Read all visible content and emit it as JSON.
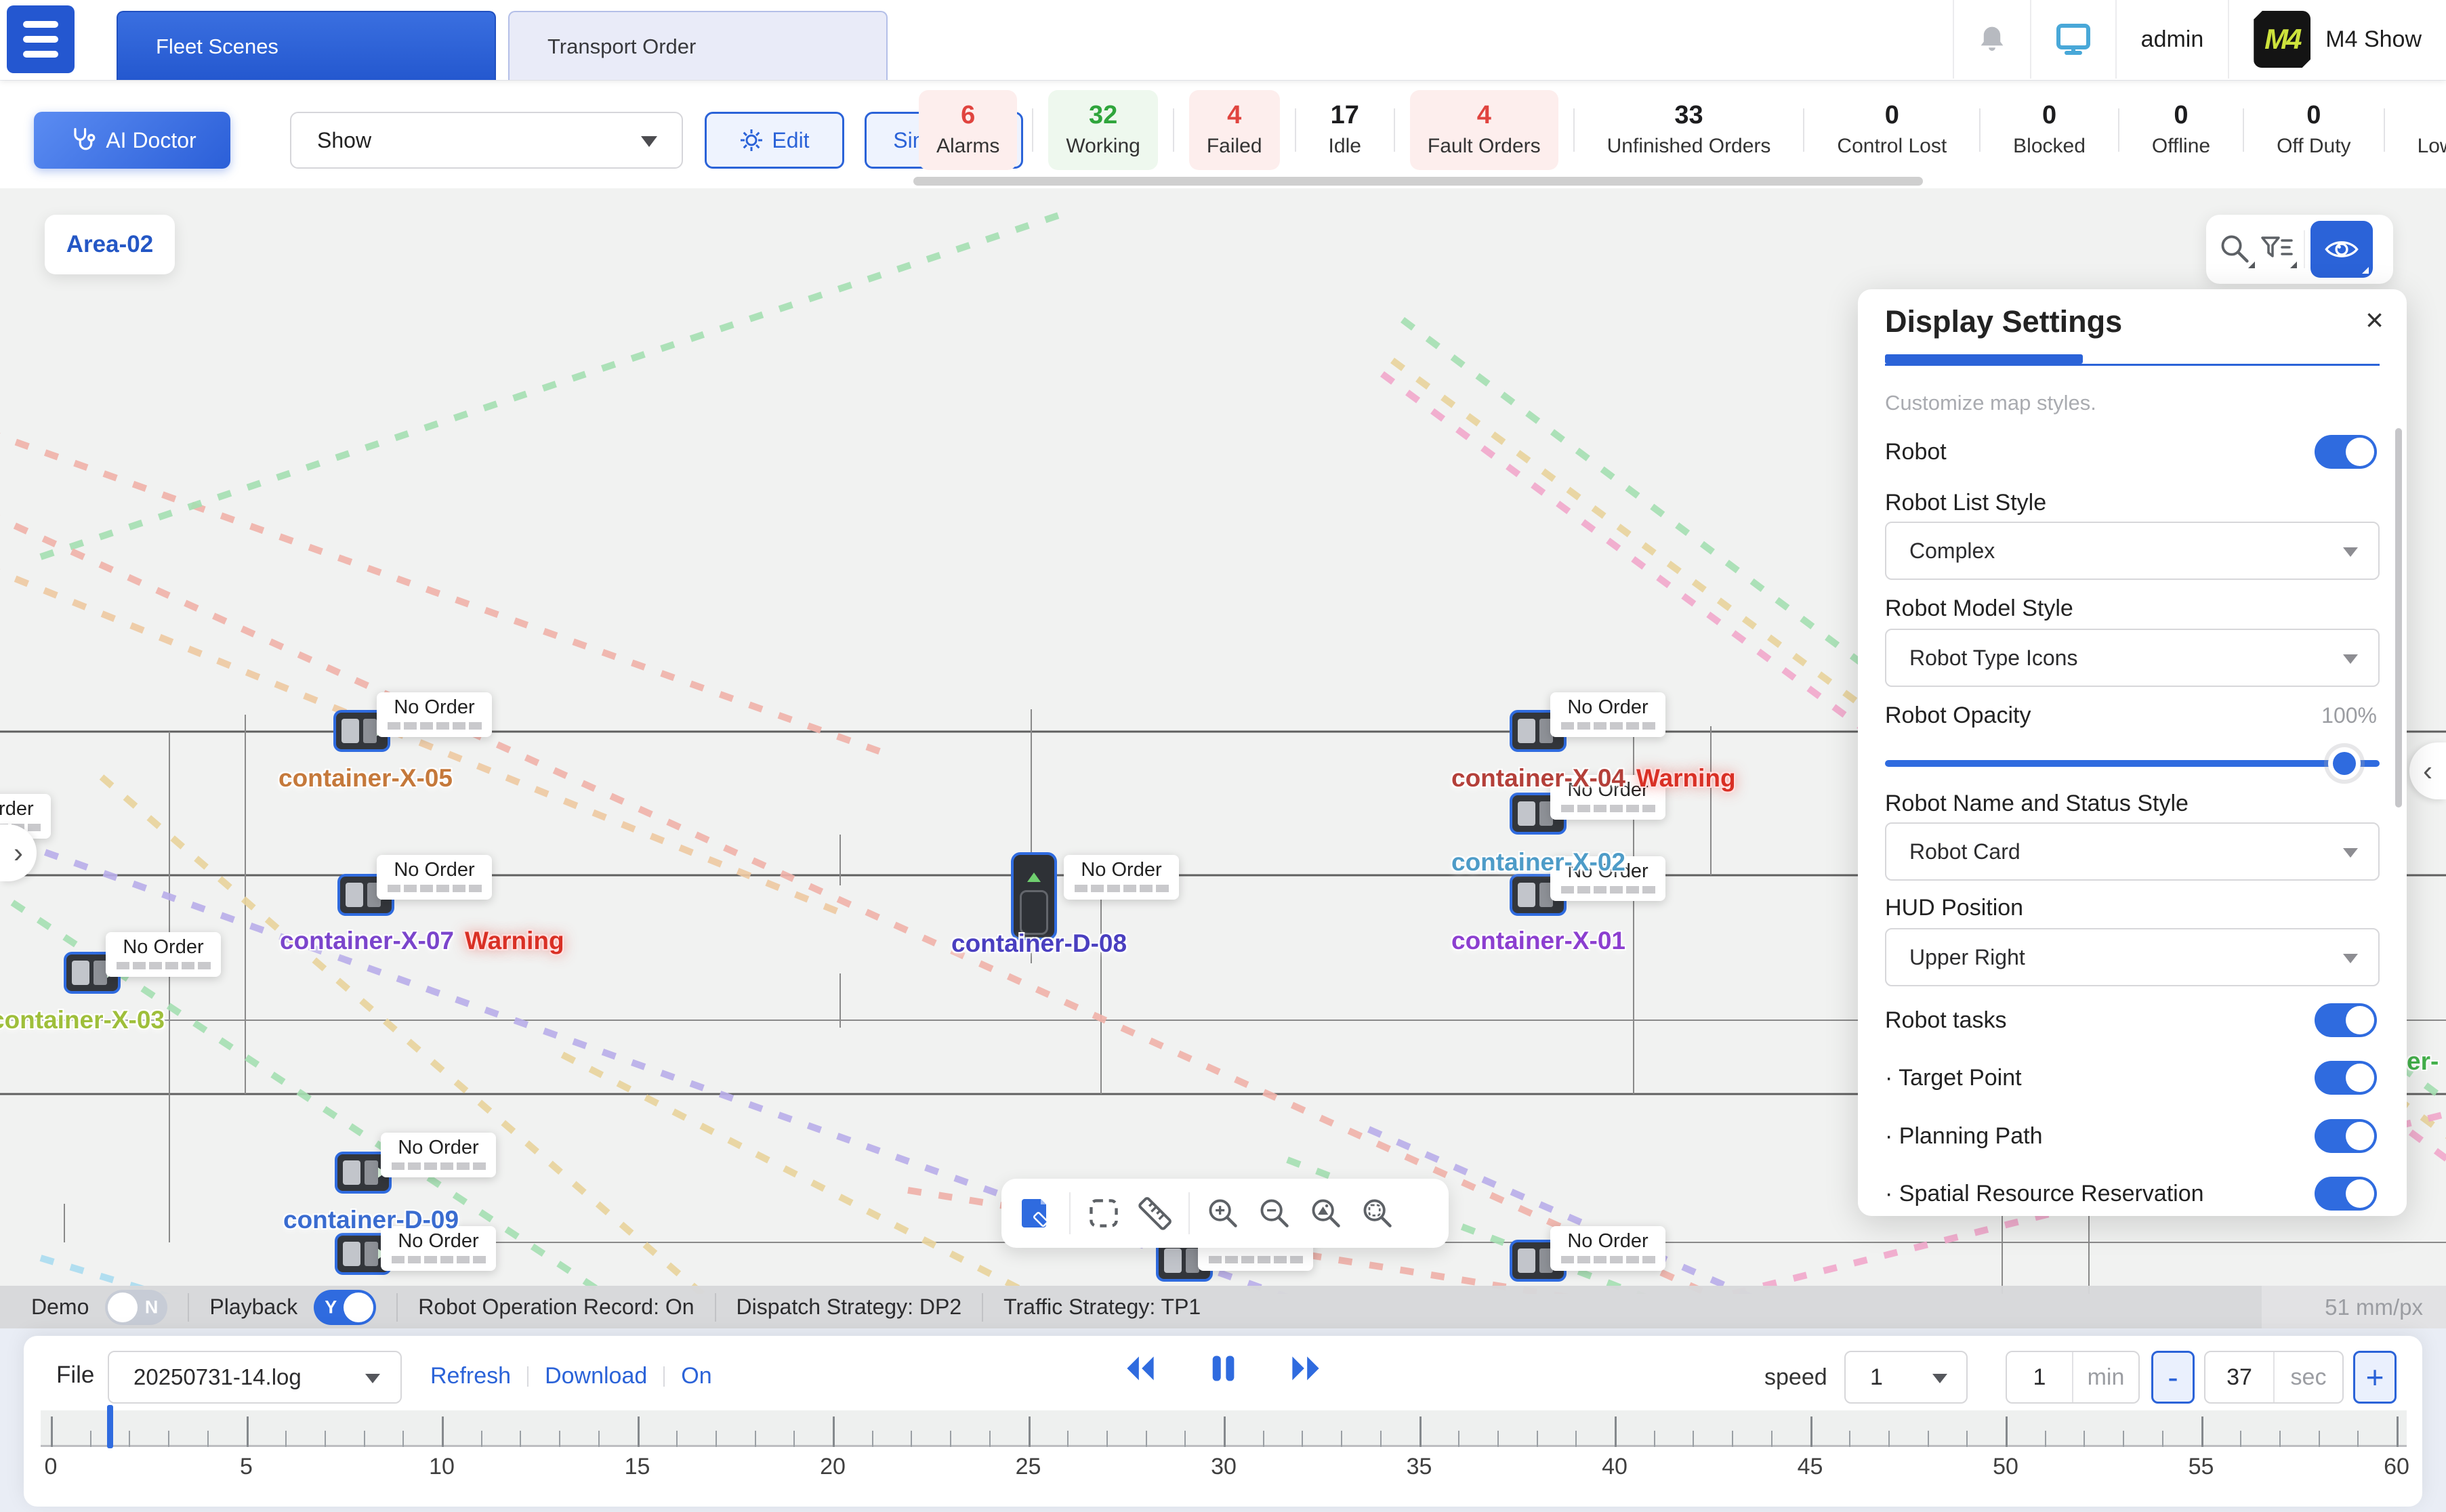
{
  "header": {
    "tabs": [
      "Fleet Scenes",
      "Transport Order"
    ],
    "user": "admin",
    "brand": "M4 Show",
    "logo_text": "M4"
  },
  "toolbar": {
    "ai_doctor": "AI Doctor",
    "mode_select": "Show",
    "edit": "Edit",
    "simulation": "Simulation",
    "stats": [
      {
        "value": "6",
        "label": "Alarms",
        "style": "red"
      },
      {
        "value": "32",
        "label": "Working",
        "style": "green"
      },
      {
        "value": "4",
        "label": "Failed",
        "style": "red"
      },
      {
        "value": "17",
        "label": "Idle",
        "style": "plain"
      },
      {
        "value": "4",
        "label": "Fault Orders",
        "style": "red"
      },
      {
        "value": "33",
        "label": "Unfinished Orders",
        "style": "plain"
      },
      {
        "value": "0",
        "label": "Control Lost",
        "style": "plain"
      },
      {
        "value": "0",
        "label": "Blocked",
        "style": "plain"
      },
      {
        "value": "0",
        "label": "Offline",
        "style": "plain"
      },
      {
        "value": "0",
        "label": "Off Duty",
        "style": "plain"
      },
      {
        "value": "0",
        "label": "Low Power",
        "style": "plain"
      }
    ]
  },
  "map": {
    "area_badge": "Area-02",
    "no_order_label": "No Order",
    "warning_label": "Warning",
    "accent_color": "#2b63d8",
    "units": [
      {
        "name": "container-X-05",
        "color": "#c5793b",
        "robot": [
          492,
          771
        ],
        "dir": "h",
        "card": [
          556,
          745
        ],
        "label": [
          411,
          851
        ]
      },
      {
        "name": "container-X-07",
        "color": "#7b45cc",
        "warning": true,
        "robot": [
          498,
          1013
        ],
        "dir": "h",
        "card": [
          556,
          985
        ],
        "label": [
          413,
          1091
        ]
      },
      {
        "name": "container-X-03",
        "color": "#9fbf3b",
        "robot": [
          94,
          1128
        ],
        "dir": "h",
        "card": [
          156,
          1099
        ],
        "label": [
          -14,
          1208
        ]
      },
      {
        "name": "container-D-08",
        "color": "#4a3fc0",
        "robot": [
          1492,
          981
        ],
        "dir": "v",
        "card": [
          1570,
          985
        ],
        "label": [
          1404,
          1095
        ]
      },
      {
        "name": "container-X-04",
        "color": "#b4403a",
        "warning": true,
        "robot": [
          2228,
          771
        ],
        "dir": "h",
        "card": [
          2288,
          745
        ],
        "label": [
          2142,
          851
        ]
      },
      {
        "name": "container-X-02",
        "color": "#4e9cc8",
        "robot": [
          2228,
          893
        ],
        "dir": "h",
        "card": [
          2288,
          867
        ],
        "label": [
          2142,
          975
        ]
      },
      {
        "name": "container-X-01",
        "color": "#8c3fd0",
        "robot": [
          2228,
          1013
        ],
        "dir": "h",
        "card": [
          2288,
          987
        ],
        "label": [
          2142,
          1091
        ]
      },
      {
        "name": "container-D-09",
        "color": "#3a6cd0",
        "robot": [
          494,
          1423
        ],
        "dir": "h",
        "card": [
          562,
          1395
        ],
        "label": [
          418,
          1503
        ]
      },
      {
        "robot": [
          494,
          1543
        ],
        "dir": "h",
        "card": [
          562,
          1533
        ]
      },
      {
        "robot": [
          1706,
          1553
        ],
        "dir": "h",
        "card": [
          1768,
          1533
        ]
      },
      {
        "robot": [
          2228,
          1553
        ],
        "dir": "h",
        "card": [
          2288,
          1533
        ]
      },
      {
        "card": [
          -95,
          895
        ]
      },
      {
        "name": "er-",
        "color": "#43b14b",
        "label": [
          3552,
          1269
        ]
      }
    ],
    "paths": [
      {
        "c": "#f0b2aa",
        "p": [
          -20,
          360,
          1320,
          840
        ]
      },
      {
        "c": "#eec9a2",
        "p": [
          -20,
          560,
          1240,
          1070
        ]
      },
      {
        "c": "#a5e0b2",
        "p": [
          60,
          545,
          1580,
          35
        ]
      },
      {
        "c": "#f0b2aa",
        "p": [
          -20,
          480,
          2570,
          1655
        ]
      },
      {
        "c": "#b9aeea",
        "p": [
          -20,
          950,
          1990,
          1670
        ]
      },
      {
        "c": "#a5e0b2",
        "p": [
          -20,
          1030,
          940,
          1665
        ]
      },
      {
        "c": "#e9d49c",
        "p": [
          150,
          870,
          1120,
          1705
        ]
      },
      {
        "c": "#e9d49c",
        "p": [
          830,
          1280,
          1660,
          1705
        ]
      },
      {
        "c": "#efb0a8",
        "p": [
          1340,
          1480,
          2730,
          1705
        ]
      },
      {
        "c": "#a5e0b2",
        "p": [
          2070,
          195,
          3640,
          1370
        ]
      },
      {
        "c": "#f2a8cc",
        "p": [
          2040,
          275,
          3640,
          1455
        ]
      },
      {
        "c": "#e9d49c",
        "p": [
          2055,
          255,
          3640,
          1420
        ]
      },
      {
        "c": "#f2a8cc",
        "p": [
          2290,
          1700,
          3640,
          1360
        ]
      },
      {
        "c": "#b9aeea",
        "p": [
          2020,
          1390,
          2750,
          1710
        ]
      },
      {
        "c": "#a5e0b2",
        "p": [
          1900,
          1435,
          2630,
          1715
        ]
      },
      {
        "c": "#abdcf0",
        "p": [
          60,
          1580,
          440,
          1695
        ]
      }
    ]
  },
  "settings": {
    "title": "Display Settings",
    "subtitle": "Customize map styles.",
    "robot_label": "Robot",
    "list_style_label": "Robot List Style",
    "list_style_value": "Complex",
    "model_style_label": "Robot Model Style",
    "model_style_value": "Robot Type Icons",
    "opacity_label": "Robot Opacity",
    "opacity_value": "100%",
    "name_style_label": "Robot Name and Status Style",
    "name_style_value": "Robot Card",
    "hud_label": "HUD Position",
    "hud_value": "Upper Right",
    "tasks_label": "Robot tasks",
    "target_label": "· Target Point",
    "planning_label": "· Planning Path",
    "spatial_label": "· Spatial Resource Reservation",
    "close_glyph": "×"
  },
  "statusbar": {
    "demo_label": "Demo",
    "demo_state": "N",
    "playback_label": "Playback",
    "playback_state": "Y",
    "record": "Robot Operation Record:  On",
    "dispatch": "Dispatch Strategy: DP2",
    "traffic": "Traffic Strategy: TP1",
    "scale": "51 mm/px"
  },
  "playbar": {
    "file_label": "File",
    "file_value": "20250731-14.log",
    "refresh": "Refresh",
    "download": "Download",
    "on": "On",
    "speed_label": "speed",
    "speed_value": "1",
    "duration_value": "1",
    "duration_unit": "min",
    "minus": "-",
    "seek_value": "37",
    "seek_unit": "sec",
    "plus": "+",
    "timeline": {
      "start": 0,
      "end": 60,
      "major_step": 5,
      "minor_step": 1,
      "cursor": 1.5
    }
  }
}
